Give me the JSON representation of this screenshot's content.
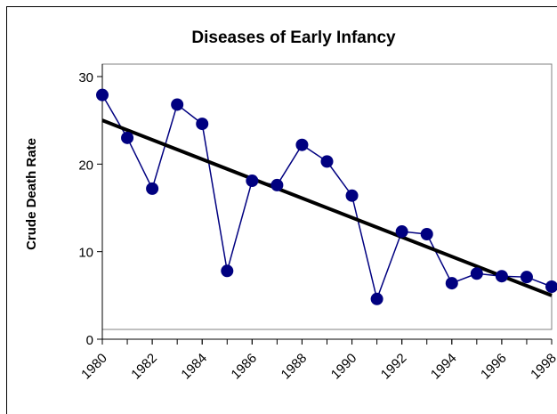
{
  "chart_data": {
    "type": "line",
    "title": "Diseases of Early Infancy",
    "y_label": "Crude Death Rate",
    "x": [
      1980,
      1981,
      1982,
      1983,
      1984,
      1985,
      1986,
      1987,
      1988,
      1989,
      1990,
      1991,
      1992,
      1993,
      1994,
      1995,
      1996,
      1997,
      1998
    ],
    "series": [
      {
        "color": "#000080",
        "values": [
          27.9,
          23.0,
          17.2,
          26.8,
          24.6,
          7.8,
          18.1,
          17.6,
          22.2,
          20.3,
          16.4,
          4.6,
          12.3,
          12.0,
          6.4,
          7.5,
          7.2,
          7.1,
          6.0
        ]
      }
    ],
    "trendline": {
      "color": "#000000",
      "x": [
        1980,
        1998
      ],
      "values": [
        25.0,
        5.0
      ]
    },
    "xlim": [
      1980,
      1998
    ],
    "xticks": [
      1980,
      1982,
      1984,
      1986,
      1988,
      1990,
      1992,
      1994,
      1996,
      1998
    ],
    "ylim": [
      0,
      30
    ],
    "yticks": [
      0,
      10,
      20,
      30
    ]
  }
}
